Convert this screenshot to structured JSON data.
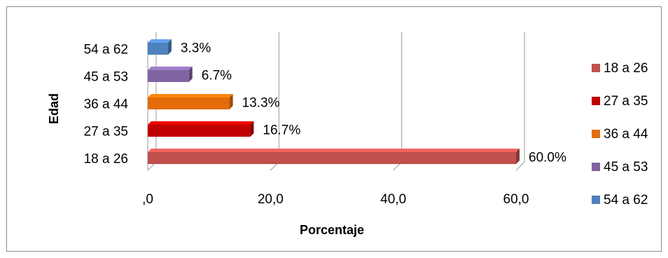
{
  "chart_data": {
    "type": "bar",
    "orientation": "horizontal",
    "style": "3d",
    "title": "",
    "xlabel": "Porcentaje",
    "ylabel": "Edad",
    "categories": [
      "18 a 26",
      "27 a 35",
      "36 a 44",
      "45 a 53",
      "54 a 62"
    ],
    "values": [
      60.0,
      16.7,
      13.3,
      6.7,
      3.3
    ],
    "data_labels": [
      "60.0%",
      "16.7%",
      "13.3%",
      "6.7%",
      "3.3%"
    ],
    "colors": [
      "#C0504D",
      "#C00000",
      "#E46C0A",
      "#8064A2",
      "#4F81BD"
    ],
    "xlim": [
      0,
      60
    ],
    "xticks": [
      ",0",
      "20,0",
      "40,0",
      "60,0"
    ],
    "grid": true,
    "legend": {
      "placement": "right",
      "entries": [
        "18 a 26",
        "27 a 35",
        "36 a 44",
        "45 a 53",
        "54 a 62"
      ]
    }
  }
}
